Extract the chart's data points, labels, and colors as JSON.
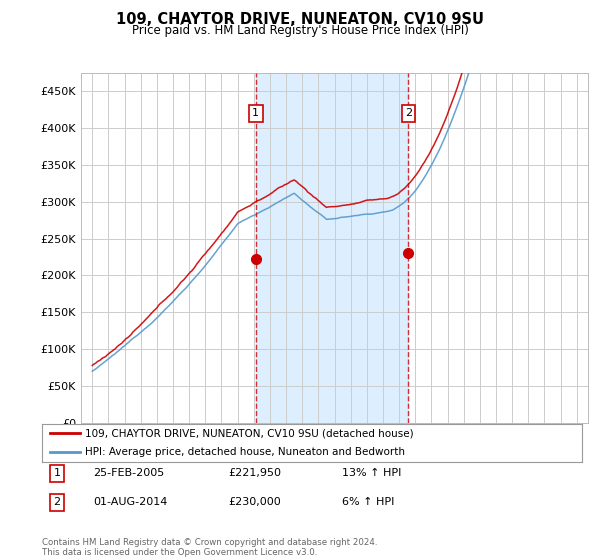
{
  "title": "109, CHAYTOR DRIVE, NUNEATON, CV10 9SU",
  "subtitle": "Price paid vs. HM Land Registry's House Price Index (HPI)",
  "ylim": [
    0,
    475000
  ],
  "yticks": [
    0,
    50000,
    100000,
    150000,
    200000,
    250000,
    300000,
    350000,
    400000,
    450000
  ],
  "bg_color": "#ffffff",
  "plot_bg_color": "#ffffff",
  "grid_color": "#cccccc",
  "sale1_price": 221950,
  "sale1_date_str": "25-FEB-2005",
  "sale1_hpi_pct": "13% ↑ HPI",
  "sale1_x": 2005.12,
  "sale2_price": 230000,
  "sale2_date_str": "01-AUG-2014",
  "sale2_hpi_pct": "6% ↑ HPI",
  "sale2_x": 2014.58,
  "line1_color": "#cc0000",
  "line2_color": "#5599cc",
  "shade_color": "#ddeeff",
  "vline_color": "#cc0000",
  "footer": "Contains HM Land Registry data © Crown copyright and database right 2024.\nThis data is licensed under the Open Government Licence v3.0.",
  "legend_label1": "109, CHAYTOR DRIVE, NUNEATON, CV10 9SU (detached house)",
  "legend_label2": "HPI: Average price, detached house, Nuneaton and Bedworth"
}
